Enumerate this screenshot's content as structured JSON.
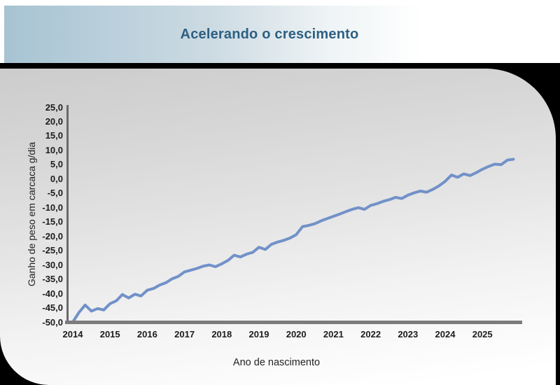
{
  "header": {
    "title": "Acelerando o crescimento",
    "title_color": "#2d6082",
    "band_gradient_left": "#a7c3d2",
    "band_gradient_right": "#ffffff"
  },
  "frame": {
    "surround_color": "#000000",
    "card_gradient_top": "#cccccc",
    "card_gradient_bottom": "#ffffff"
  },
  "chart_data": {
    "type": "line",
    "title": "Acelerando o crescimento",
    "xlabel": "Ano de nascimento",
    "ylabel": "Ganho de peso em carcaca g/dia",
    "ylim": [
      -50,
      25
    ],
    "xlim": [
      2014,
      2026
    ],
    "grid": false,
    "legend": null,
    "line_color": "#7191c8",
    "axis_color": "#7b7b7b",
    "y_tick_labels": [
      "25,0",
      "20,0",
      "15,0",
      "10,0",
      "5,0",
      "0,0",
      "-5,0",
      "-10,0",
      "-15,0",
      "-20,0",
      "-25,0",
      "-30,0",
      "-35,0",
      "-40,0",
      "-45,0",
      "-50,0"
    ],
    "x_tick_labels": [
      "2014",
      "2015",
      "2016",
      "2017",
      "2018",
      "2019",
      "2020",
      "2021",
      "2022",
      "2023",
      "2024",
      "2025"
    ],
    "x": [
      2014,
      2014.17,
      2014.33,
      2014.5,
      2014.67,
      2014.83,
      2015,
      2015.17,
      2015.33,
      2015.5,
      2015.67,
      2015.83,
      2016,
      2016.17,
      2016.33,
      2016.5,
      2016.67,
      2016.83,
      2017,
      2017.17,
      2017.33,
      2017.5,
      2017.67,
      2017.83,
      2018,
      2018.17,
      2018.33,
      2018.5,
      2018.67,
      2018.83,
      2019,
      2019.17,
      2019.33,
      2019.5,
      2019.67,
      2019.83,
      2020,
      2020.17,
      2020.33,
      2020.5,
      2020.67,
      2020.83,
      2021,
      2021.17,
      2021.33,
      2021.5,
      2021.67,
      2021.83,
      2022,
      2022.17,
      2022.33,
      2022.5,
      2022.67,
      2022.83,
      2023,
      2023.17,
      2023.33,
      2023.5,
      2023.67,
      2023.83,
      2024,
      2024.17,
      2024.33,
      2024.5,
      2024.67,
      2024.83,
      2025,
      2025.17,
      2025.33,
      2025.5,
      2025.67,
      2025.83
    ],
    "values": [
      -50.0,
      -46.6,
      -44.1,
      -46.2,
      -45.3,
      -45.8,
      -43.6,
      -42.6,
      -40.4,
      -41.6,
      -40.3,
      -40.9,
      -38.9,
      -38.3,
      -37.1,
      -36.3,
      -34.9,
      -34.1,
      -32.5,
      -31.9,
      -31.3,
      -30.5,
      -30.1,
      -30.7,
      -29.7,
      -28.5,
      -26.7,
      -27.3,
      -26.3,
      -25.7,
      -23.9,
      -24.7,
      -22.9,
      -22.1,
      -21.5,
      -20.7,
      -19.5,
      -16.7,
      -16.3,
      -15.7,
      -14.7,
      -13.9,
      -13.1,
      -12.3,
      -11.5,
      -10.7,
      -10.1,
      -10.7,
      -9.3,
      -8.7,
      -7.9,
      -7.3,
      -6.5,
      -6.9,
      -5.7,
      -4.9,
      -4.3,
      -4.7,
      -3.7,
      -2.5,
      -0.9,
      1.3,
      0.5,
      1.7,
      1.1,
      2.1,
      3.3,
      4.3,
      5.1,
      4.9,
      6.5,
      6.8
    ]
  }
}
